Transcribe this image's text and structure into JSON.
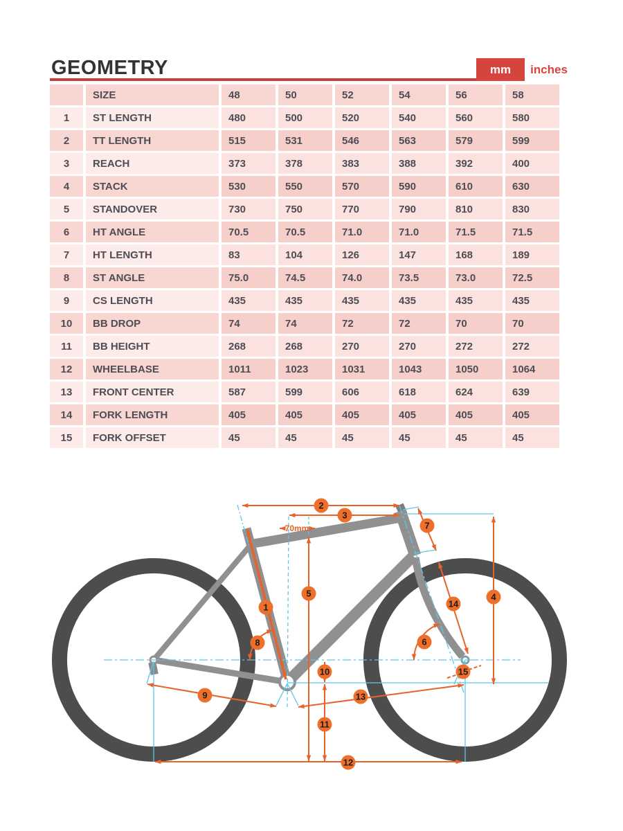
{
  "header": {
    "title": "GEOMETRY",
    "unit_mm": "mm",
    "unit_inches": "inches"
  },
  "table": {
    "headers": {
      "num": "",
      "label": "SIZE",
      "sizes": [
        "48",
        "50",
        "52",
        "54",
        "56",
        "58"
      ]
    },
    "rows": [
      {
        "num": "1",
        "label": "ST LENGTH",
        "values": [
          "480",
          "500",
          "520",
          "540",
          "560",
          "580"
        ]
      },
      {
        "num": "2",
        "label": "TT LENGTH",
        "values": [
          "515",
          "531",
          "546",
          "563",
          "579",
          "599"
        ]
      },
      {
        "num": "3",
        "label": "REACH",
        "values": [
          "373",
          "378",
          "383",
          "388",
          "392",
          "400"
        ]
      },
      {
        "num": "4",
        "label": "STACK",
        "values": [
          "530",
          "550",
          "570",
          "590",
          "610",
          "630"
        ]
      },
      {
        "num": "5",
        "label": "STANDOVER",
        "values": [
          "730",
          "750",
          "770",
          "790",
          "810",
          "830"
        ]
      },
      {
        "num": "6",
        "label": "HT ANGLE",
        "values": [
          "70.5",
          "70.5",
          "71.0",
          "71.0",
          "71.5",
          "71.5"
        ]
      },
      {
        "num": "7",
        "label": "HT LENGTH",
        "values": [
          "83",
          "104",
          "126",
          "147",
          "168",
          "189"
        ]
      },
      {
        "num": "8",
        "label": "ST ANGLE",
        "values": [
          "75.0",
          "74.5",
          "74.0",
          "73.5",
          "73.0",
          "72.5"
        ]
      },
      {
        "num": "9",
        "label": "CS LENGTH",
        "values": [
          "435",
          "435",
          "435",
          "435",
          "435",
          "435"
        ]
      },
      {
        "num": "10",
        "label": "BB DROP",
        "values": [
          "74",
          "74",
          "72",
          "72",
          "70",
          "70"
        ]
      },
      {
        "num": "11",
        "label": "BB HEIGHT",
        "values": [
          "268",
          "268",
          "270",
          "270",
          "272",
          "272"
        ]
      },
      {
        "num": "12",
        "label": "WHEELBASE",
        "values": [
          "1011",
          "1023",
          "1031",
          "1043",
          "1050",
          "1064"
        ]
      },
      {
        "num": "13",
        "label": "FRONT CENTER",
        "values": [
          "587",
          "599",
          "606",
          "618",
          "624",
          "639"
        ]
      },
      {
        "num": "14",
        "label": "FORK LENGTH",
        "values": [
          "405",
          "405",
          "405",
          "405",
          "405",
          "405"
        ]
      },
      {
        "num": "15",
        "label": "FORK OFFSET",
        "values": [
          "45",
          "45",
          "45",
          "45",
          "45",
          "45"
        ]
      }
    ]
  },
  "diagram": {
    "badges": [
      "1",
      "2",
      "3",
      "4",
      "5",
      "6",
      "7",
      "8",
      "9",
      "10",
      "11",
      "12",
      "13",
      "14",
      "15"
    ],
    "setback_label": "70mm"
  },
  "colors": {
    "accent_red": "#d6443e",
    "dim_orange": "#e7632a",
    "guide_cyan": "#5cc8e6",
    "frame_gray": "#909090",
    "wheel_gray": "#4d4d4d"
  }
}
